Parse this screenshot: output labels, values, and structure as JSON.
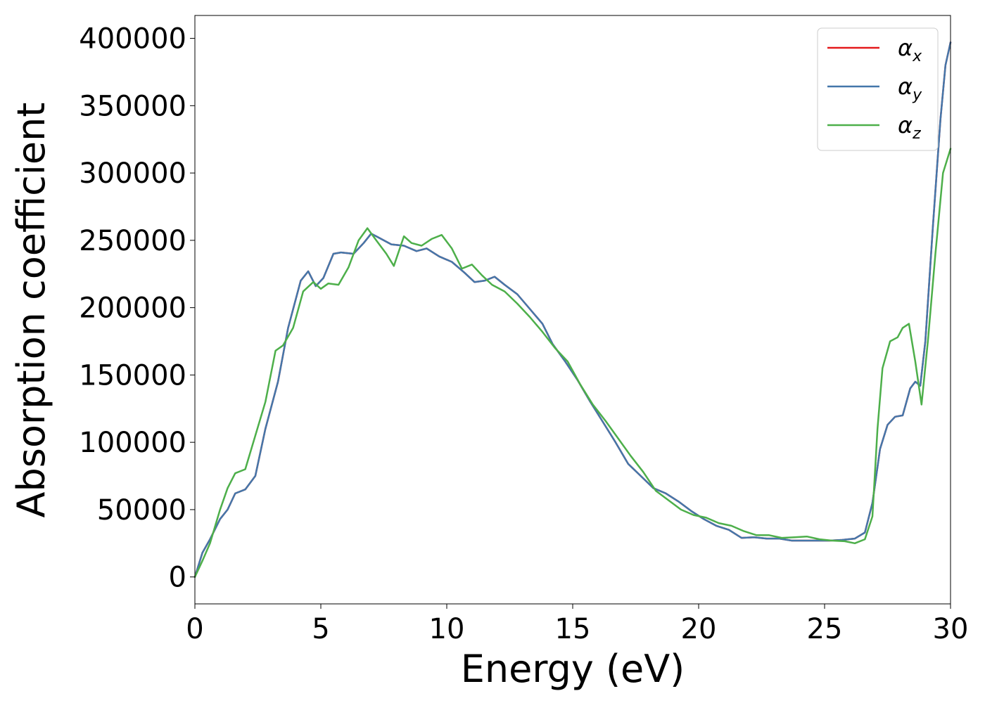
{
  "chart_data": {
    "type": "line",
    "xlabel": "Energy (eV)",
    "ylabel": "Absorption coefficient",
    "xlim": [
      0,
      30
    ],
    "ylim": [
      -20000,
      417000
    ],
    "x_ticks": [
      0,
      5,
      10,
      15,
      20,
      25,
      30
    ],
    "y_ticks": [
      0,
      50000,
      100000,
      150000,
      200000,
      250000,
      300000,
      350000,
      400000
    ],
    "grid": false,
    "legend_position": "top-right",
    "series": [
      {
        "name": "α",
        "subscript": "x",
        "color": "#e41a1c",
        "x": [
          0,
          0.3,
          0.6,
          1,
          1.3,
          1.6,
          2,
          2.4,
          2.8,
          3.3,
          3.7,
          4.2,
          4.5,
          4.8,
          5.1,
          5.5,
          5.8,
          6.3,
          6.7,
          7.0,
          7.3,
          7.8,
          8.3,
          8.8,
          9.2,
          9.7,
          10.2,
          10.7,
          11.1,
          11.5,
          11.9,
          12.3,
          12.8,
          13.3,
          13.8,
          14.2,
          14.7,
          15.2,
          15.7,
          16.2,
          16.7,
          17.2,
          17.7,
          18.2,
          18.7,
          19.2,
          19.7,
          20.2,
          20.7,
          21.2,
          21.7,
          22.2,
          22.7,
          23.2,
          23.7,
          24.2,
          24.7,
          25.2,
          25.7,
          26.2,
          26.6,
          26.9,
          27.2,
          27.5,
          27.8,
          28.1,
          28.4,
          28.6,
          28.8,
          29.0,
          29.3,
          29.6,
          29.8,
          30
        ],
        "values": [
          0,
          18000,
          28000,
          43000,
          50000,
          62000,
          65000,
          75000,
          110000,
          145000,
          185000,
          220000,
          227000,
          216000,
          222000,
          240000,
          241000,
          240000,
          248000,
          255000,
          252000,
          247000,
          246000,
          242000,
          244000,
          238000,
          234000,
          226000,
          219000,
          220000,
          223000,
          217000,
          210000,
          199000,
          188000,
          173000,
          160000,
          146000,
          130000,
          115000,
          100000,
          84000,
          75000,
          66000,
          62000,
          56000,
          49000,
          43000,
          38000,
          35000,
          29000,
          29500,
          28500,
          28500,
          27000,
          27000,
          27000,
          27000,
          27500,
          28500,
          33000,
          55000,
          95000,
          113000,
          119000,
          120000,
          140000,
          145000,
          142000,
          175000,
          260000,
          340000,
          380000,
          397000
        ]
      },
      {
        "name": "α",
        "subscript": "y",
        "color": "#4477aa",
        "x": [
          0,
          0.3,
          0.6,
          1,
          1.3,
          1.6,
          2,
          2.4,
          2.8,
          3.3,
          3.7,
          4.2,
          4.5,
          4.8,
          5.1,
          5.5,
          5.8,
          6.3,
          6.7,
          7.0,
          7.3,
          7.8,
          8.3,
          8.8,
          9.2,
          9.7,
          10.2,
          10.7,
          11.1,
          11.5,
          11.9,
          12.3,
          12.8,
          13.3,
          13.8,
          14.2,
          14.7,
          15.2,
          15.7,
          16.2,
          16.7,
          17.2,
          17.7,
          18.2,
          18.7,
          19.2,
          19.7,
          20.2,
          20.7,
          21.2,
          21.7,
          22.2,
          22.7,
          23.2,
          23.7,
          24.2,
          24.7,
          25.2,
          25.7,
          26.2,
          26.6,
          26.9,
          27.2,
          27.5,
          27.8,
          28.1,
          28.4,
          28.6,
          28.8,
          29.0,
          29.3,
          29.6,
          29.8,
          30
        ],
        "values": [
          0,
          18000,
          28000,
          43000,
          50000,
          62000,
          65000,
          75000,
          110000,
          145000,
          185000,
          220000,
          227000,
          216000,
          222000,
          240000,
          241000,
          240000,
          248000,
          255000,
          252000,
          247000,
          246000,
          242000,
          244000,
          238000,
          234000,
          226000,
          219000,
          220000,
          223000,
          217000,
          210000,
          199000,
          188000,
          173000,
          160000,
          146000,
          130000,
          115000,
          100000,
          84000,
          75000,
          66000,
          62000,
          56000,
          49000,
          43000,
          38000,
          35000,
          29000,
          29500,
          28500,
          28500,
          27000,
          27000,
          27000,
          27000,
          27500,
          28500,
          33000,
          55000,
          95000,
          113000,
          119000,
          120000,
          140000,
          145000,
          142000,
          175000,
          260000,
          340000,
          380000,
          397000
        ]
      },
      {
        "name": "α",
        "subscript": "z",
        "color": "#4daf4a",
        "x": [
          0,
          0.3,
          0.6,
          1,
          1.3,
          1.6,
          2,
          2.4,
          2.8,
          3.2,
          3.5,
          3.9,
          4.3,
          4.7,
          5.0,
          5.3,
          5.7,
          6.1,
          6.5,
          6.85,
          7.2,
          7.6,
          7.9,
          8.3,
          8.6,
          9.0,
          9.4,
          9.8,
          10.2,
          10.6,
          11.0,
          11.4,
          11.8,
          12.3,
          12.8,
          13.3,
          13.8,
          14.3,
          14.8,
          15.3,
          15.8,
          16.3,
          16.8,
          17.3,
          17.8,
          18.3,
          18.8,
          19.3,
          19.8,
          20.3,
          20.8,
          21.3,
          21.8,
          22.3,
          22.8,
          23.3,
          23.8,
          24.3,
          24.8,
          25.3,
          25.8,
          26.2,
          26.6,
          26.9,
          27.1,
          27.3,
          27.6,
          27.9,
          28.1,
          28.35,
          28.6,
          28.85,
          29.1,
          29.4,
          29.7,
          30
        ],
        "values": [
          0,
          12000,
          25000,
          50000,
          66000,
          77000,
          80000,
          105000,
          130000,
          168000,
          172000,
          185000,
          212000,
          219000,
          214000,
          218000,
          217000,
          230000,
          250000,
          259000,
          250000,
          240000,
          231000,
          253000,
          248000,
          246000,
          251000,
          254000,
          244000,
          229000,
          232000,
          224000,
          217000,
          212000,
          203000,
          193000,
          182000,
          170000,
          160000,
          143000,
          128000,
          116000,
          103000,
          90000,
          78000,
          64000,
          57000,
          50000,
          46000,
          44000,
          40000,
          38000,
          34000,
          31000,
          31000,
          29000,
          29500,
          30000,
          28000,
          27000,
          26500,
          25000,
          28000,
          45000,
          110000,
          155000,
          175000,
          178000,
          185000,
          188000,
          160000,
          128000,
          175000,
          240000,
          300000,
          318000
        ]
      }
    ]
  }
}
